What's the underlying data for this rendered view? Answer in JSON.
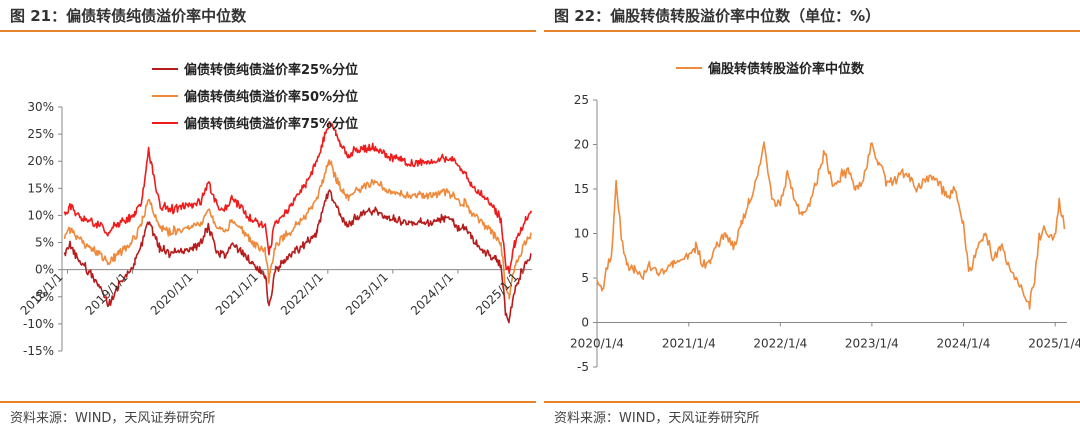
{
  "panels": [
    {
      "title": "图 21：偏债转债纯债溢价率中位数",
      "source": "资料来源：WIND，天风证券研究所"
    },
    {
      "title": "图 22：偏股转债转股溢价率中位数（单位：%）",
      "source": "资料来源：WIND，天风证券研究所"
    }
  ],
  "chart_data": [
    {
      "type": "line",
      "title": "",
      "xlabel": "",
      "ylabel": "",
      "ylim": [
        -0.15,
        0.3
      ],
      "y_ticks": [
        -0.15,
        -0.1,
        -0.05,
        0,
        0.05,
        0.1,
        0.15,
        0.2,
        0.25,
        0.3
      ],
      "y_tick_labels": [
        "-15%",
        "-10%",
        "-5%",
        "0%",
        "5%",
        "10%",
        "15%",
        "20%",
        "25%",
        "30%"
      ],
      "x_tick_labels": [
        "2018/1/1",
        "2019/1/1",
        "2020/1/1",
        "2021/1/1",
        "2022/1/1",
        "2023/1/1",
        "2024/1/1",
        "2025/1/1"
      ],
      "x_range": [
        "2017-12-01",
        "2025-02-20"
      ],
      "legend_position": "top-center",
      "grid": false,
      "series": [
        {
          "name": "偏债转债纯债溢价率25%分位",
          "color": "#b71c1c",
          "x": [
            "2017-12-15",
            "2018-01-15",
            "2018-03-01",
            "2018-05-01",
            "2018-07-01",
            "2018-08-15",
            "2018-10-15",
            "2018-12-15",
            "2019-01-15",
            "2019-02-25",
            "2019-04-01",
            "2019-06-01",
            "2019-08-01",
            "2019-10-01",
            "2019-12-01",
            "2020-01-15",
            "2020-03-01",
            "2020-04-15",
            "2020-06-01",
            "2020-07-15",
            "2020-09-01",
            "2020-11-01",
            "2020-12-15",
            "2021-01-15",
            "2021-02-05",
            "2021-03-15",
            "2021-05-01",
            "2021-07-01",
            "2021-09-01",
            "2021-11-01",
            "2021-12-10",
            "2022-01-10",
            "2022-02-15",
            "2022-03-15",
            "2022-04-27",
            "2022-06-01",
            "2022-08-01",
            "2022-10-01",
            "2022-12-01",
            "2023-02-01",
            "2023-04-01",
            "2023-06-01",
            "2023-08-01",
            "2023-10-01",
            "2023-12-01",
            "2024-01-15",
            "2024-02-06",
            "2024-03-15",
            "2024-05-01",
            "2024-06-15",
            "2024-08-01",
            "2024-08-30",
            "2024-09-24",
            "2024-10-15",
            "2024-11-15",
            "2024-12-15",
            "2025-01-15",
            "2025-02-15"
          ],
          "values": [
            0.025,
            0.045,
            0.02,
            -0.005,
            -0.03,
            -0.065,
            -0.03,
            -0.005,
            0.015,
            0.05,
            0.09,
            0.04,
            0.03,
            0.035,
            0.04,
            0.045,
            0.08,
            0.035,
            0.025,
            0.05,
            0.035,
            0.01,
            0.0,
            -0.01,
            -0.07,
            0.0,
            0.015,
            0.035,
            0.05,
            0.07,
            0.12,
            0.145,
            0.12,
            0.1,
            0.08,
            0.095,
            0.105,
            0.11,
            0.095,
            0.09,
            0.085,
            0.09,
            0.085,
            0.095,
            0.09,
            0.07,
            0.08,
            0.06,
            0.04,
            0.03,
            0.02,
            0.005,
            -0.075,
            -0.095,
            -0.04,
            -0.01,
            0.01,
            0.03
          ]
        },
        {
          "name": "偏债转债纯债溢价率50%分位",
          "color": "#ef8a3c",
          "x": [
            "2017-12-15",
            "2018-01-15",
            "2018-03-01",
            "2018-05-01",
            "2018-07-01",
            "2018-08-15",
            "2018-10-15",
            "2018-12-15",
            "2019-01-15",
            "2019-02-25",
            "2019-04-01",
            "2019-06-01",
            "2019-08-01",
            "2019-10-01",
            "2019-12-01",
            "2020-01-15",
            "2020-03-01",
            "2020-04-15",
            "2020-06-01",
            "2020-07-15",
            "2020-09-01",
            "2020-11-01",
            "2020-12-15",
            "2021-01-15",
            "2021-02-05",
            "2021-03-15",
            "2021-05-01",
            "2021-07-01",
            "2021-09-01",
            "2021-11-01",
            "2021-12-10",
            "2022-01-10",
            "2022-02-15",
            "2022-03-15",
            "2022-04-27",
            "2022-06-01",
            "2022-08-01",
            "2022-10-01",
            "2022-12-01",
            "2023-02-01",
            "2023-04-01",
            "2023-06-01",
            "2023-08-01",
            "2023-10-01",
            "2023-12-01",
            "2024-01-15",
            "2024-02-06",
            "2024-03-15",
            "2024-05-01",
            "2024-06-15",
            "2024-08-01",
            "2024-08-30",
            "2024-09-24",
            "2024-10-15",
            "2024-11-15",
            "2024-12-15",
            "2025-01-15",
            "2025-02-15"
          ],
          "values": [
            0.06,
            0.075,
            0.06,
            0.04,
            0.03,
            0.01,
            0.03,
            0.045,
            0.06,
            0.09,
            0.13,
            0.08,
            0.07,
            0.075,
            0.08,
            0.085,
            0.115,
            0.08,
            0.07,
            0.09,
            0.075,
            0.05,
            0.04,
            0.035,
            -0.02,
            0.045,
            0.06,
            0.08,
            0.1,
            0.13,
            0.17,
            0.2,
            0.17,
            0.15,
            0.13,
            0.145,
            0.155,
            0.16,
            0.145,
            0.14,
            0.135,
            0.14,
            0.135,
            0.145,
            0.14,
            0.12,
            0.125,
            0.105,
            0.09,
            0.075,
            0.06,
            0.045,
            -0.03,
            -0.05,
            0.005,
            0.03,
            0.05,
            0.065
          ]
        },
        {
          "name": "偏债转债纯债溢价率75%分位",
          "color": "#ef1c1c",
          "x": [
            "2017-12-15",
            "2018-01-15",
            "2018-03-01",
            "2018-05-01",
            "2018-07-01",
            "2018-08-15",
            "2018-10-15",
            "2018-12-15",
            "2019-01-15",
            "2019-02-25",
            "2019-04-01",
            "2019-06-01",
            "2019-08-01",
            "2019-10-01",
            "2019-12-01",
            "2020-01-15",
            "2020-03-01",
            "2020-04-15",
            "2020-06-01",
            "2020-07-15",
            "2020-09-01",
            "2020-11-01",
            "2020-12-15",
            "2021-01-15",
            "2021-02-05",
            "2021-03-15",
            "2021-05-01",
            "2021-07-01",
            "2021-09-01",
            "2021-11-01",
            "2021-12-10",
            "2022-01-10",
            "2022-02-15",
            "2022-03-15",
            "2022-04-27",
            "2022-06-01",
            "2022-08-01",
            "2022-10-01",
            "2022-12-01",
            "2023-02-01",
            "2023-04-01",
            "2023-06-01",
            "2023-08-01",
            "2023-10-01",
            "2023-12-01",
            "2024-01-15",
            "2024-02-06",
            "2024-03-15",
            "2024-05-01",
            "2024-06-15",
            "2024-08-01",
            "2024-08-30",
            "2024-09-24",
            "2024-10-15",
            "2024-11-15",
            "2024-12-15",
            "2025-01-15",
            "2025-02-15"
          ],
          "values": [
            0.1,
            0.12,
            0.1,
            0.09,
            0.08,
            0.07,
            0.085,
            0.095,
            0.1,
            0.13,
            0.22,
            0.12,
            0.11,
            0.115,
            0.12,
            0.125,
            0.16,
            0.12,
            0.11,
            0.13,
            0.115,
            0.09,
            0.085,
            0.085,
            0.03,
            0.09,
            0.1,
            0.13,
            0.16,
            0.2,
            0.245,
            0.27,
            0.255,
            0.23,
            0.21,
            0.22,
            0.225,
            0.225,
            0.21,
            0.205,
            0.195,
            0.2,
            0.195,
            0.205,
            0.205,
            0.185,
            0.18,
            0.155,
            0.14,
            0.13,
            0.11,
            0.09,
            0.01,
            -0.005,
            0.05,
            0.07,
            0.09,
            0.105
          ]
        }
      ]
    },
    {
      "type": "line",
      "title": "",
      "xlabel": "",
      "ylabel": "",
      "ylim": [
        -5,
        25
      ],
      "y_ticks": [
        -5,
        0,
        5,
        10,
        15,
        20,
        25
      ],
      "y_tick_labels": [
        "-5",
        "0",
        "5",
        "10",
        "15",
        "20",
        "25"
      ],
      "x_tick_labels": [
        "2020/1/4",
        "2021/1/4",
        "2022/1/4",
        "2023/1/4",
        "2024/1/4",
        "2025/1/4"
      ],
      "x_range": [
        "2020-01-04",
        "2025-02-20"
      ],
      "legend_position": "top-center",
      "grid": false,
      "series": [
        {
          "name": "偏股转债转股溢价率中位数",
          "color": "#ef8a3c",
          "x": [
            "2020-01-04",
            "2020-01-25",
            "2020-02-10",
            "2020-03-01",
            "2020-03-20",
            "2020-04-10",
            "2020-05-01",
            "2020-06-01",
            "2020-07-01",
            "2020-08-01",
            "2020-09-01",
            "2020-10-01",
            "2020-11-01",
            "2020-12-01",
            "2021-01-04",
            "2021-02-01",
            "2021-03-01",
            "2021-04-01",
            "2021-05-01",
            "2021-06-01",
            "2021-07-01",
            "2021-08-01",
            "2021-09-01",
            "2021-10-01",
            "2021-11-01",
            "2021-12-01",
            "2022-01-04",
            "2022-02-01",
            "2022-03-01",
            "2022-04-01",
            "2022-05-01",
            "2022-06-01",
            "2022-07-01",
            "2022-08-01",
            "2022-09-01",
            "2022-10-01",
            "2022-11-01",
            "2022-12-01",
            "2023-01-04",
            "2023-02-01",
            "2023-03-01",
            "2023-04-01",
            "2023-05-01",
            "2023-06-01",
            "2023-07-01",
            "2023-08-01",
            "2023-09-01",
            "2023-10-01",
            "2023-11-01",
            "2023-12-01",
            "2024-01-04",
            "2024-01-25",
            "2024-02-10",
            "2024-03-01",
            "2024-04-01",
            "2024-05-01",
            "2024-06-01",
            "2024-07-01",
            "2024-08-01",
            "2024-09-01",
            "2024-09-24",
            "2024-10-15",
            "2024-11-01",
            "2024-11-20",
            "2024-12-10",
            "2025-01-01",
            "2025-01-20",
            "2025-02-10"
          ],
          "values": [
            4.5,
            3.5,
            6.0,
            7.0,
            16.0,
            9.5,
            6.5,
            6.0,
            5.0,
            6.5,
            5.5,
            6.0,
            6.5,
            7.0,
            7.5,
            8.5,
            6.5,
            7.0,
            9.0,
            10.0,
            8.5,
            11.0,
            13.5,
            16.0,
            20.0,
            14.0,
            13.0,
            17.0,
            14.0,
            12.0,
            13.5,
            16.0,
            19.5,
            15.0,
            16.5,
            17.0,
            15.0,
            16.0,
            20.0,
            18.0,
            16.0,
            15.5,
            17.0,
            16.5,
            15.0,
            16.0,
            16.5,
            15.5,
            14.0,
            15.0,
            11.0,
            6.0,
            6.5,
            8.5,
            10.0,
            7.0,
            8.5,
            6.5,
            5.0,
            3.0,
            2.0,
            5.0,
            9.5,
            10.5,
            10.0,
            9.5,
            13.5,
            10.5
          ]
        }
      ]
    }
  ]
}
